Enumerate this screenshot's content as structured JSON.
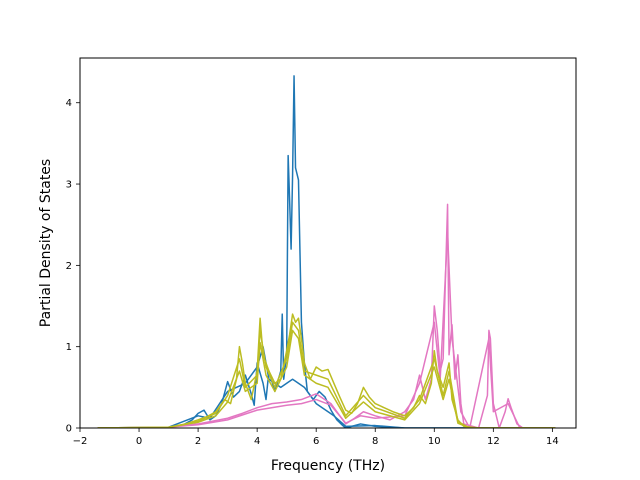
{
  "chart_data": {
    "type": "line",
    "title": "",
    "xlabel": "Frequency (THz)",
    "ylabel": "Partial Density of States",
    "xlim": [
      -2,
      14.8
    ],
    "ylim": [
      0,
      4.55
    ],
    "xticks": [
      -2,
      0,
      2,
      4,
      6,
      8,
      10,
      12,
      14
    ],
    "yticks": [
      0,
      1,
      2,
      3,
      4
    ],
    "grid": false,
    "legend": "none",
    "series": [
      {
        "color": "#1f77b4",
        "points": [
          [
            -1.4,
            0
          ],
          [
            0,
            0
          ],
          [
            0.5,
            0
          ],
          [
            1,
            0.01
          ],
          [
            1.5,
            0.04
          ],
          [
            1.8,
            0.1
          ],
          [
            2.0,
            0.18
          ],
          [
            2.2,
            0.22
          ],
          [
            2.4,
            0.1
          ],
          [
            2.6,
            0.15
          ],
          [
            2.8,
            0.3
          ],
          [
            3.0,
            0.57
          ],
          [
            3.2,
            0.38
          ],
          [
            3.4,
            0.45
          ],
          [
            3.6,
            0.65
          ],
          [
            3.8,
            0.42
          ],
          [
            3.9,
            0.28
          ],
          [
            4.0,
            0.8
          ],
          [
            4.2,
            0.55
          ],
          [
            4.3,
            0.35
          ],
          [
            4.4,
            0.7
          ],
          [
            4.6,
            0.45
          ],
          [
            4.8,
            0.7
          ],
          [
            4.85,
            1.4
          ],
          [
            4.9,
            0.6
          ],
          [
            5.0,
            0.9
          ],
          [
            5.05,
            3.35
          ],
          [
            5.1,
            2.8
          ],
          [
            5.15,
            2.2
          ],
          [
            5.2,
            3.1
          ],
          [
            5.25,
            4.33
          ],
          [
            5.3,
            3.2
          ],
          [
            5.4,
            3.05
          ],
          [
            5.5,
            1.3
          ],
          [
            5.6,
            0.8
          ],
          [
            5.7,
            0.45
          ],
          [
            5.9,
            0.35
          ],
          [
            6.1,
            0.45
          ],
          [
            6.3,
            0.38
          ],
          [
            6.5,
            0.22
          ],
          [
            6.7,
            0.1
          ],
          [
            6.9,
            0.03
          ],
          [
            7.0,
            0
          ],
          [
            7.5,
            0.05
          ],
          [
            8.0,
            0.02
          ],
          [
            8.5,
            0.01
          ],
          [
            9.0,
            0
          ],
          [
            10,
            0
          ],
          [
            11,
            0
          ],
          [
            12,
            0
          ],
          [
            13,
            0
          ],
          [
            14.1,
            0
          ]
        ]
      },
      {
        "color": "#1f77b4",
        "points": [
          [
            -1.4,
            0
          ],
          [
            1,
            0.01
          ],
          [
            2.0,
            0.15
          ],
          [
            2.4,
            0.12
          ],
          [
            3.0,
            0.45
          ],
          [
            3.6,
            0.55
          ],
          [
            4.0,
            0.75
          ],
          [
            4.2,
            1.0
          ],
          [
            4.4,
            0.6
          ],
          [
            4.8,
            0.5
          ],
          [
            5.2,
            0.6
          ],
          [
            5.6,
            0.5
          ],
          [
            6.0,
            0.3
          ],
          [
            6.6,
            0.15
          ],
          [
            7.0,
            0.02
          ],
          [
            8.0,
            0.03
          ],
          [
            9,
            0
          ],
          [
            14.1,
            0
          ]
        ]
      },
      {
        "color": "#e377c2",
        "points": [
          [
            -1.4,
            0
          ],
          [
            0,
            0
          ],
          [
            1,
            0.01
          ],
          [
            2,
            0.05
          ],
          [
            3,
            0.12
          ],
          [
            3.5,
            0.18
          ],
          [
            4,
            0.25
          ],
          [
            4.5,
            0.3
          ],
          [
            5,
            0.32
          ],
          [
            5.5,
            0.35
          ],
          [
            6,
            0.42
          ],
          [
            6.5,
            0.3
          ],
          [
            6.8,
            0.15
          ],
          [
            7,
            0.05
          ],
          [
            7.3,
            0.12
          ],
          [
            7.6,
            0.2
          ],
          [
            8,
            0.15
          ],
          [
            8.5,
            0.1
          ],
          [
            9,
            0.2
          ],
          [
            9.3,
            0.35
          ],
          [
            9.5,
            0.65
          ],
          [
            9.7,
            0.35
          ],
          [
            9.9,
            0.6
          ],
          [
            10.0,
            1.5
          ],
          [
            10.1,
            1.2
          ],
          [
            10.2,
            0.7
          ],
          [
            10.3,
            0.85
          ],
          [
            10.45,
            2.75
          ],
          [
            10.5,
            0.9
          ],
          [
            10.6,
            1.27
          ],
          [
            10.7,
            0.6
          ],
          [
            10.8,
            0.9
          ],
          [
            10.9,
            0.3
          ],
          [
            11.0,
            0.05
          ],
          [
            11.5,
            0
          ],
          [
            11.8,
            0.4
          ],
          [
            11.85,
            1.2
          ],
          [
            11.9,
            1.1
          ],
          [
            12.0,
            0.3
          ],
          [
            12.2,
            0
          ],
          [
            12.4,
            0.2
          ],
          [
            12.5,
            0.36
          ],
          [
            12.6,
            0.25
          ],
          [
            12.8,
            0.05
          ],
          [
            13,
            0
          ],
          [
            14.1,
            0
          ]
        ]
      },
      {
        "color": "#e377c2",
        "points": [
          [
            -1.4,
            0
          ],
          [
            1,
            0.01
          ],
          [
            2,
            0.04
          ],
          [
            3,
            0.1
          ],
          [
            4,
            0.22
          ],
          [
            5,
            0.28
          ],
          [
            5.5,
            0.3
          ],
          [
            6,
            0.35
          ],
          [
            6.5,
            0.28
          ],
          [
            7,
            0.06
          ],
          [
            7.5,
            0.15
          ],
          [
            8,
            0.12
          ],
          [
            9,
            0.15
          ],
          [
            9.5,
            0.55
          ],
          [
            10.0,
            1.3
          ],
          [
            10.2,
            0.6
          ],
          [
            10.45,
            2.4
          ],
          [
            10.6,
            1.1
          ],
          [
            10.9,
            0.2
          ],
          [
            11.2,
            0
          ],
          [
            11.85,
            1.1
          ],
          [
            12.0,
            0.2
          ],
          [
            12.5,
            0.3
          ],
          [
            12.9,
            0
          ],
          [
            14.1,
            0
          ]
        ]
      },
      {
        "color": "#bcbd22",
        "points": [
          [
            -1.4,
            0
          ],
          [
            0,
            0
          ],
          [
            0.5,
            0
          ],
          [
            1,
            0.01
          ],
          [
            1.5,
            0.04
          ],
          [
            2,
            0.1
          ],
          [
            2.3,
            0.14
          ],
          [
            2.6,
            0.2
          ],
          [
            2.9,
            0.35
          ],
          [
            3.1,
            0.3
          ],
          [
            3.3,
            0.6
          ],
          [
            3.4,
            1.0
          ],
          [
            3.5,
            0.8
          ],
          [
            3.6,
            0.55
          ],
          [
            3.8,
            0.35
          ],
          [
            4.0,
            0.7
          ],
          [
            4.1,
            1.35
          ],
          [
            4.2,
            0.9
          ],
          [
            4.4,
            0.7
          ],
          [
            4.6,
            0.55
          ],
          [
            4.8,
            0.6
          ],
          [
            5.0,
            0.95
          ],
          [
            5.1,
            1.15
          ],
          [
            5.2,
            1.4
          ],
          [
            5.3,
            1.3
          ],
          [
            5.4,
            1.35
          ],
          [
            5.5,
            1.1
          ],
          [
            5.6,
            0.8
          ],
          [
            5.8,
            0.6
          ],
          [
            6.0,
            0.75
          ],
          [
            6.2,
            0.7
          ],
          [
            6.4,
            0.72
          ],
          [
            6.6,
            0.55
          ],
          [
            6.8,
            0.38
          ],
          [
            7.0,
            0.22
          ],
          [
            7.2,
            0.18
          ],
          [
            7.4,
            0.3
          ],
          [
            7.6,
            0.5
          ],
          [
            7.8,
            0.38
          ],
          [
            8.0,
            0.3
          ],
          [
            8.3,
            0.25
          ],
          [
            8.6,
            0.2
          ],
          [
            9.0,
            0.15
          ],
          [
            9.3,
            0.25
          ],
          [
            9.5,
            0.4
          ],
          [
            9.7,
            0.3
          ],
          [
            9.9,
            0.55
          ],
          [
            10.0,
            0.95
          ],
          [
            10.1,
            0.7
          ],
          [
            10.3,
            0.5
          ],
          [
            10.5,
            0.8
          ],
          [
            10.6,
            0.35
          ],
          [
            10.8,
            0.1
          ],
          [
            11.0,
            0.02
          ],
          [
            11.5,
            0
          ],
          [
            12,
            0
          ],
          [
            13,
            0
          ],
          [
            14.1,
            0
          ]
        ]
      },
      {
        "color": "#bcbd22",
        "points": [
          [
            -1.4,
            0
          ],
          [
            1,
            0.01
          ],
          [
            2,
            0.08
          ],
          [
            2.6,
            0.18
          ],
          [
            3.0,
            0.4
          ],
          [
            3.4,
            0.85
          ],
          [
            3.6,
            0.5
          ],
          [
            4.0,
            0.65
          ],
          [
            4.1,
            1.2
          ],
          [
            4.3,
            0.75
          ],
          [
            4.6,
            0.5
          ],
          [
            5.0,
            0.85
          ],
          [
            5.2,
            1.3
          ],
          [
            5.4,
            1.2
          ],
          [
            5.6,
            0.7
          ],
          [
            6.0,
            0.65
          ],
          [
            6.4,
            0.6
          ],
          [
            6.8,
            0.3
          ],
          [
            7.0,
            0.15
          ],
          [
            7.6,
            0.4
          ],
          [
            8.0,
            0.25
          ],
          [
            9.0,
            0.12
          ],
          [
            9.5,
            0.35
          ],
          [
            10.0,
            0.85
          ],
          [
            10.3,
            0.4
          ],
          [
            10.5,
            0.7
          ],
          [
            10.8,
            0.08
          ],
          [
            11.2,
            0
          ],
          [
            14.1,
            0
          ]
        ]
      },
      {
        "color": "#bcbd22",
        "points": [
          [
            -1.4,
            0
          ],
          [
            1,
            0.01
          ],
          [
            2,
            0.07
          ],
          [
            2.6,
            0.15
          ],
          [
            3.0,
            0.32
          ],
          [
            3.4,
            0.7
          ],
          [
            3.6,
            0.45
          ],
          [
            4.0,
            0.55
          ],
          [
            4.1,
            1.05
          ],
          [
            4.3,
            0.65
          ],
          [
            4.6,
            0.45
          ],
          [
            5.0,
            0.75
          ],
          [
            5.2,
            1.2
          ],
          [
            5.4,
            1.1
          ],
          [
            5.6,
            0.65
          ],
          [
            6.0,
            0.55
          ],
          [
            6.4,
            0.5
          ],
          [
            6.8,
            0.25
          ],
          [
            7.0,
            0.12
          ],
          [
            7.6,
            0.32
          ],
          [
            8.0,
            0.2
          ],
          [
            9.0,
            0.1
          ],
          [
            9.5,
            0.3
          ],
          [
            10.0,
            0.75
          ],
          [
            10.3,
            0.35
          ],
          [
            10.5,
            0.6
          ],
          [
            10.8,
            0.06
          ],
          [
            11.2,
            0
          ],
          [
            14.1,
            0
          ]
        ]
      }
    ]
  }
}
